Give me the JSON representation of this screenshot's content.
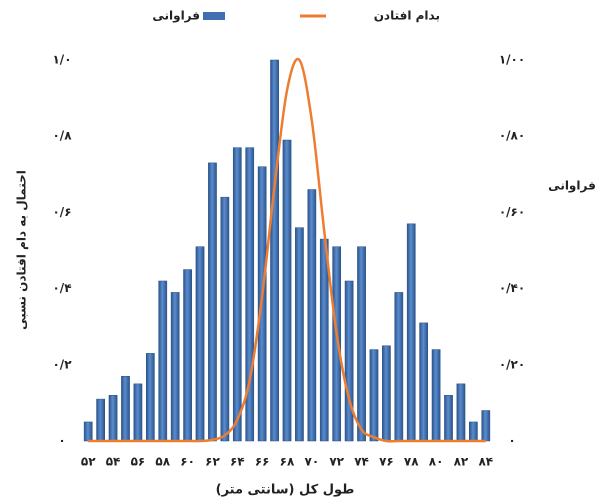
{
  "chart_data": {
    "type": "bar",
    "x_label": "طول کل (سانتی متر)",
    "y_label": "احتمال به دام افتادن نسبی",
    "y2_label": "فراوانی",
    "categories": [
      "۵۲",
      null,
      "۵۴",
      null,
      "۵۶",
      null,
      "۵۸",
      null,
      "۶۰",
      null,
      "۶۲",
      null,
      "۶۴",
      null,
      "۶۶",
      null,
      "۶۸",
      null,
      "۷۰",
      null,
      "۷۲",
      null,
      "۷۴",
      null,
      "۷۶",
      null,
      "۷۸",
      null,
      "۸۰",
      null,
      "۸۲",
      null,
      "۸۴"
    ],
    "series": [
      {
        "name": "فراوانی",
        "type": "bar",
        "axis": "y2",
        "color": "#3f6fb0",
        "values": [
          0.05,
          0.11,
          0.12,
          0.17,
          0.15,
          0.23,
          0.42,
          0.39,
          0.45,
          0.51,
          0.73,
          0.64,
          0.77,
          0.77,
          0.72,
          1.0,
          0.79,
          0.56,
          0.66,
          0.53,
          0.51,
          0.42,
          0.51,
          0.24,
          0.25,
          0.39,
          0.57,
          0.31,
          0.24,
          0.12,
          0.15,
          0.05,
          0.08
        ]
      },
      {
        "name": "بدام افتادن",
        "type": "line",
        "color": "#ed7d31",
        "values": [
          0,
          0,
          0,
          0,
          0,
          0,
          0,
          0,
          0,
          0,
          0.003,
          0.015,
          0.056,
          0.16,
          0.38,
          0.67,
          0.92,
          1.0,
          0.84,
          0.55,
          0.28,
          0.11,
          0.03,
          0.01,
          0,
          0,
          0,
          0,
          0,
          0,
          0,
          0,
          0
        ]
      }
    ],
    "ylim": [
      0,
      1
    ],
    "yticks": [
      {
        "value": 0,
        "label": "۰"
      },
      {
        "value": 0.2,
        "label": "۰/۲"
      },
      {
        "value": 0.4,
        "label": "۰/۴"
      },
      {
        "value": 0.6,
        "label": "۰/۶"
      },
      {
        "value": 0.8,
        "label": "۰/۸"
      },
      {
        "value": 1,
        "label": "۱/۰"
      }
    ],
    "y2lim": [
      0,
      1
    ],
    "y2ticks": [
      {
        "value": 0,
        "label": "۰"
      },
      {
        "value": 0.2,
        "label": "۰/۲۰"
      },
      {
        "value": 0.4,
        "label": "۰/۴۰"
      },
      {
        "value": 0.6,
        "label": "۰/۶۰"
      },
      {
        "value": 0.8,
        "label": "۰/۸۰"
      },
      {
        "value": 1,
        "label": "۱/۰۰"
      }
    ],
    "grid": false,
    "legend": "top"
  }
}
